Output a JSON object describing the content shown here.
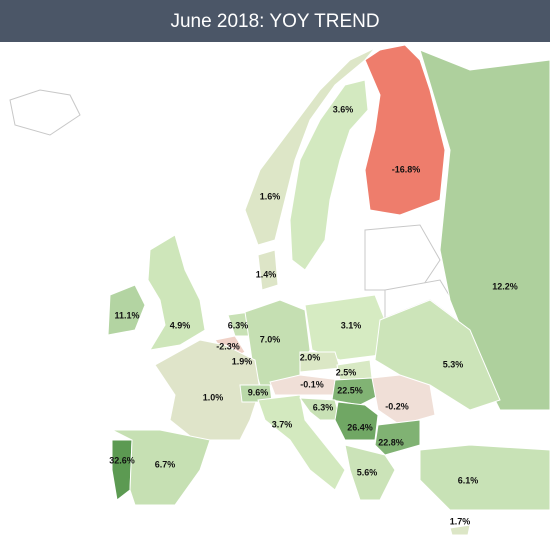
{
  "title": "June 2018: YOY TREND",
  "map": {
    "regions": [
      {
        "value": 3.6,
        "label": "3.6%"
      },
      {
        "value": 1.6,
        "label": "1.6%"
      },
      {
        "value": -16.8,
        "label": "-16.8%"
      },
      {
        "value": 12.2,
        "label": "12.2%"
      },
      {
        "value": 1.4,
        "label": "1.4%"
      },
      {
        "value": 11.1,
        "label": "11.1%"
      },
      {
        "value": 4.9,
        "label": "4.9%"
      },
      {
        "value": 6.3,
        "label": "6.3%"
      },
      {
        "value": -2.3,
        "label": "-2.3%"
      },
      {
        "value": 1.9,
        "label": "1.9%"
      },
      {
        "value": 7.0,
        "label": "7.0%"
      },
      {
        "value": 3.1,
        "label": "3.1%"
      },
      {
        "value": 2.0,
        "label": "2.0%"
      },
      {
        "value": 2.5,
        "label": "2.5%"
      },
      {
        "value": -0.1,
        "label": "-0.1%"
      },
      {
        "value": 22.5,
        "label": "22.5%"
      },
      {
        "value": -0.2,
        "label": "-0.2%"
      },
      {
        "value": 5.3,
        "label": "5.3%"
      },
      {
        "value": 1.0,
        "label": "1.0%"
      },
      {
        "value": 9.6,
        "label": "9.6%"
      },
      {
        "value": 3.7,
        "label": "3.7%"
      },
      {
        "value": 6.3,
        "label": "6.3%"
      },
      {
        "value": 26.4,
        "label": "26.4%"
      },
      {
        "value": 22.8,
        "label": "22.8%"
      },
      {
        "value": 5.6,
        "label": "5.6%"
      },
      {
        "value": 6.1,
        "label": "6.1%"
      },
      {
        "value": 1.7,
        "label": "1.7%"
      },
      {
        "value": 32.6,
        "label": "32.6%"
      },
      {
        "value": 6.7,
        "label": "6.7%"
      }
    ]
  }
}
